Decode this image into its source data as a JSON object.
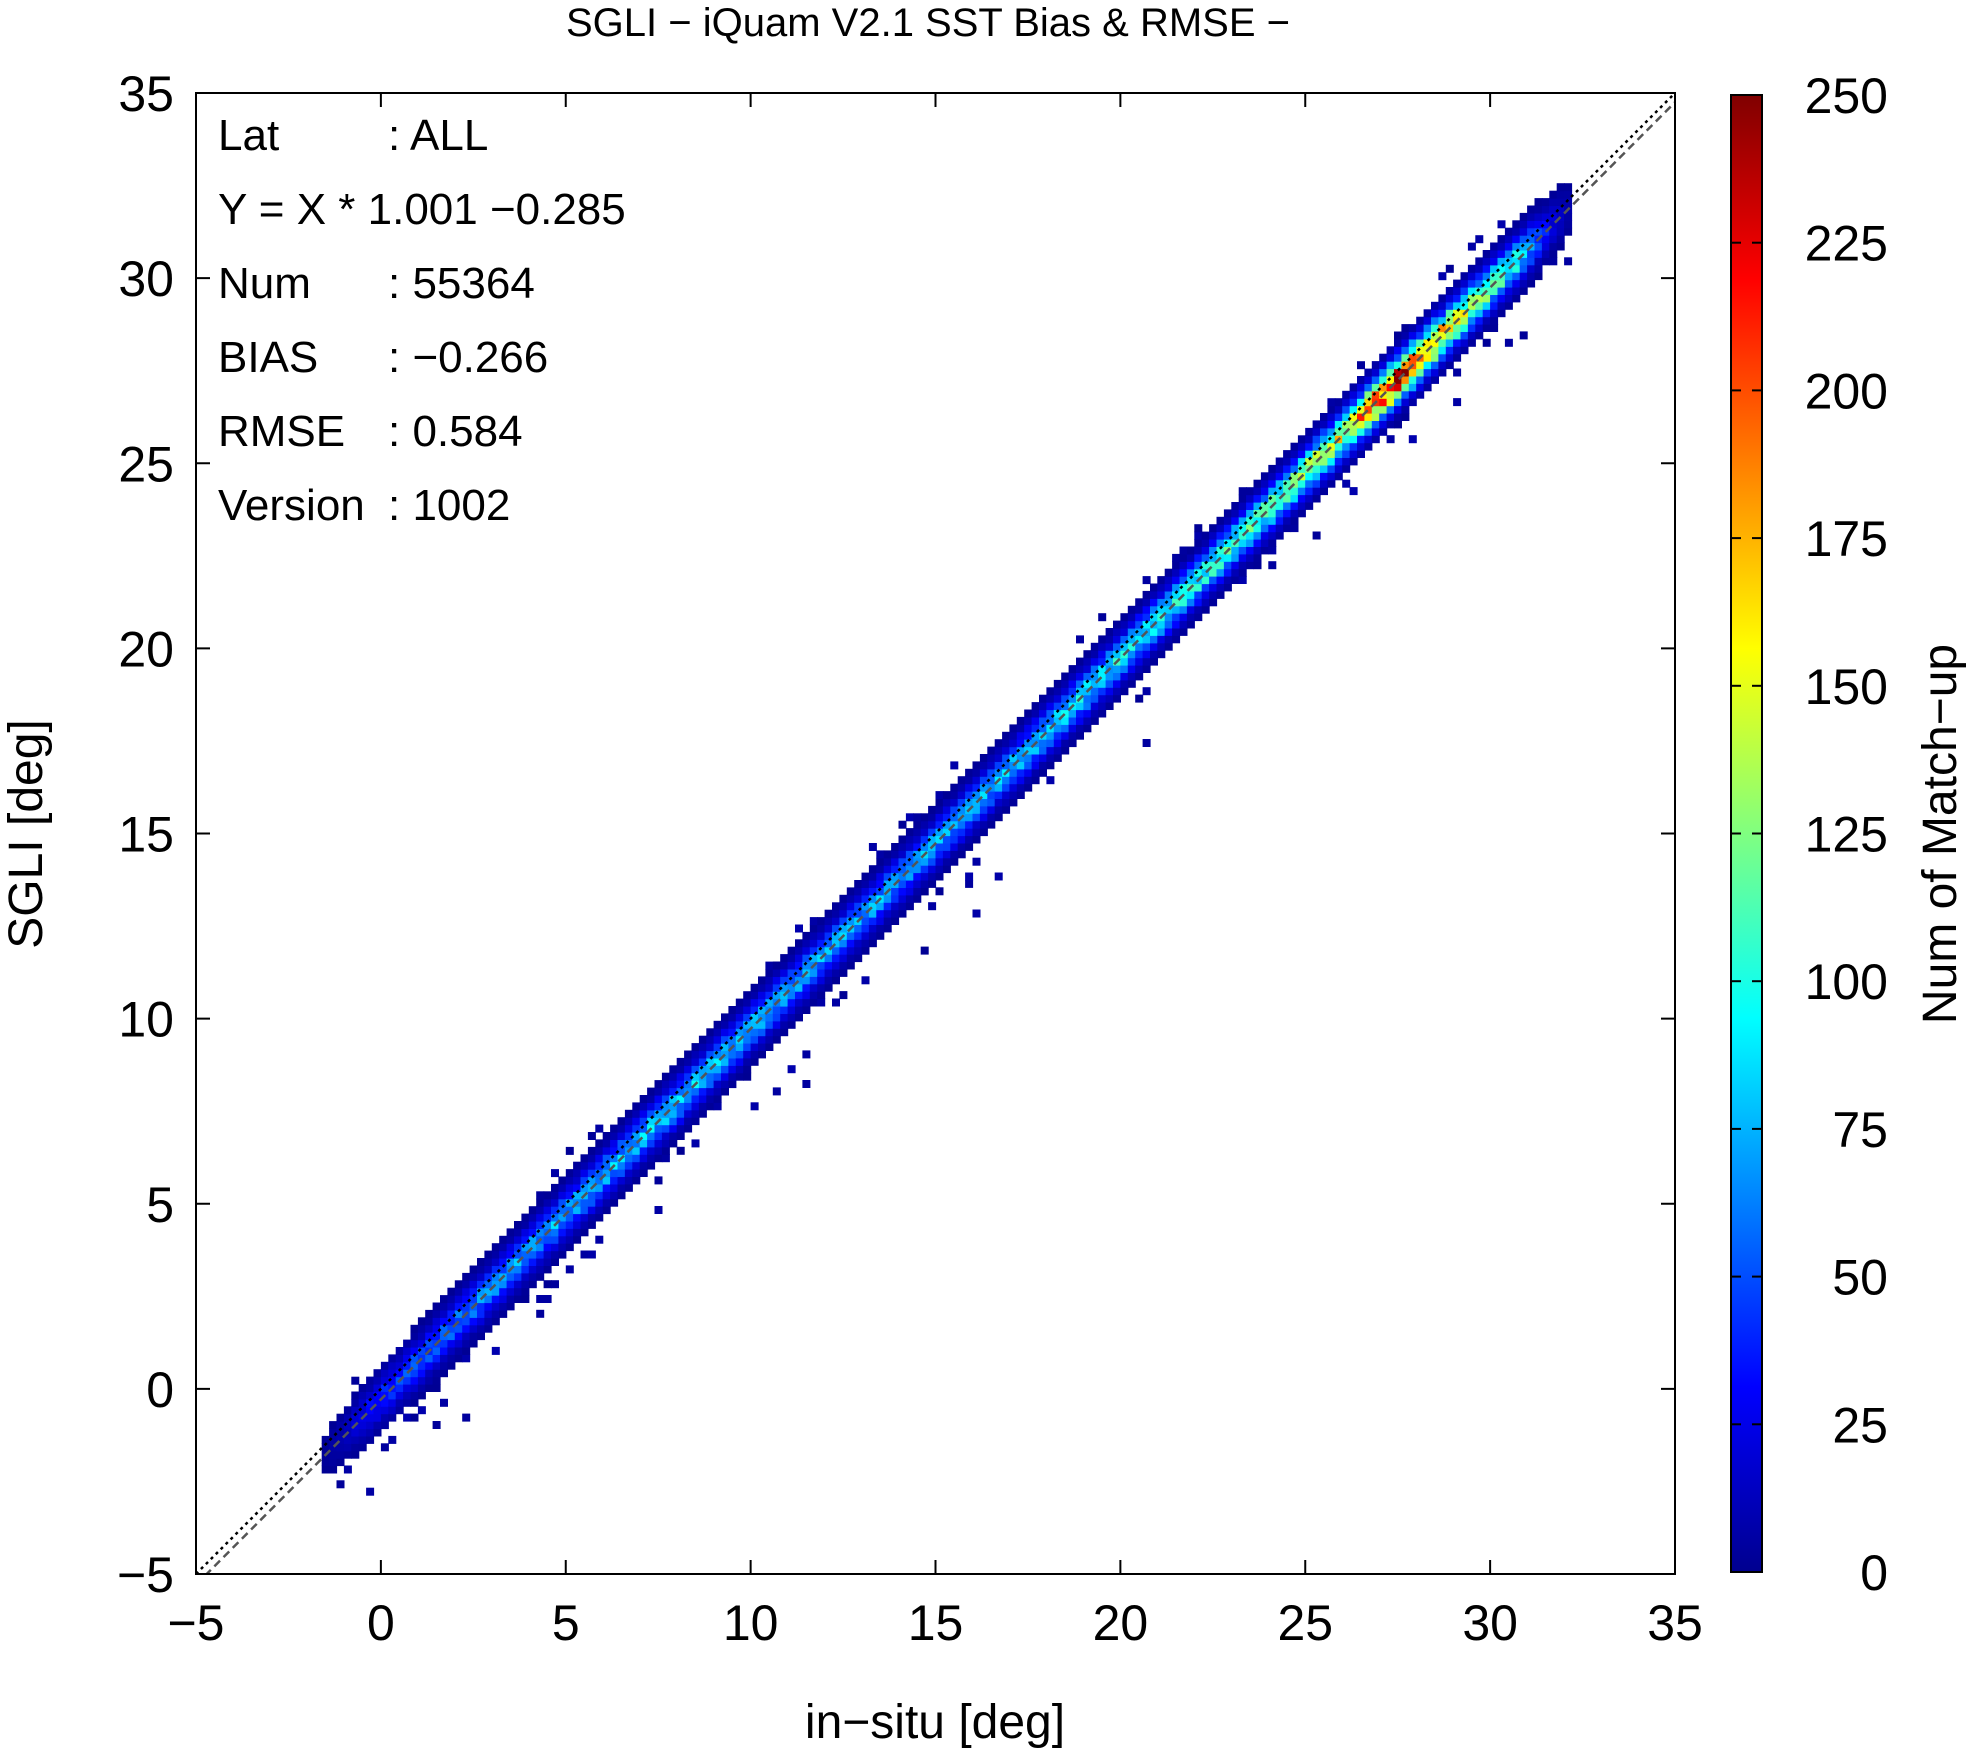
{
  "chart_data": {
    "type": "heatmap",
    "title": "SGLI − iQuam V2.1 SST Bias & RMSE  −",
    "xlabel": "in−situ [deg]",
    "ylabel": "SGLI [deg]",
    "xlim": [
      -5,
      35
    ],
    "ylim": [
      -5,
      35
    ],
    "x_ticks": [
      -5,
      0,
      5,
      10,
      15,
      20,
      25,
      30,
      35
    ],
    "y_ticks": [
      -5,
      0,
      5,
      10,
      15,
      20,
      25,
      30,
      35
    ],
    "x_tick_labels": [
      "−5",
      "0",
      "5",
      "10",
      "15",
      "20",
      "25",
      "30",
      "35"
    ],
    "y_tick_labels": [
      "−5",
      "0",
      "5",
      "10",
      "15",
      "20",
      "25",
      "30",
      "35"
    ],
    "colorbar": {
      "label": "Num of Match−up",
      "min": 0,
      "max": 250,
      "ticks": [
        0,
        25,
        50,
        75,
        100,
        125,
        150,
        175,
        200,
        225,
        250
      ],
      "tick_labels": [
        "0",
        "25",
        "50",
        "75",
        "100",
        "125",
        "150",
        "175",
        "200",
        "225",
        "250"
      ],
      "colormap": [
        "#00008f",
        "#0000ff",
        "#0080ff",
        "#00ffff",
        "#80ff80",
        "#ffff00",
        "#ff8000",
        "#ff0000",
        "#800000"
      ]
    },
    "lines": [
      {
        "kind": "one-to-one",
        "slope": 1.0,
        "intercept": 0.0,
        "style": "dotted",
        "color": "#000000"
      },
      {
        "kind": "regression",
        "slope": 1.001,
        "intercept": -0.285,
        "style": "dashed",
        "color": "#555555"
      }
    ],
    "density_profile": [
      {
        "x": -1,
        "count": 20
      },
      {
        "x": 0,
        "count": 40
      },
      {
        "x": 2,
        "count": 60
      },
      {
        "x": 4,
        "count": 70
      },
      {
        "x": 6,
        "count": 75
      },
      {
        "x": 8,
        "count": 80
      },
      {
        "x": 10,
        "count": 75
      },
      {
        "x": 12,
        "count": 70
      },
      {
        "x": 14,
        "count": 70
      },
      {
        "x": 16,
        "count": 70
      },
      {
        "x": 18,
        "count": 80
      },
      {
        "x": 20,
        "count": 90
      },
      {
        "x": 22,
        "count": 100
      },
      {
        "x": 24,
        "count": 110
      },
      {
        "x": 26,
        "count": 150
      },
      {
        "x": 27.5,
        "count": 230
      },
      {
        "x": 29,
        "count": 150
      },
      {
        "x": 30.5,
        "count": 100
      },
      {
        "x": 31.5,
        "count": 40
      }
    ],
    "stats": [
      {
        "label": "Lat",
        "value": ": ALL"
      },
      {
        "label": "Y = X * 1.001 −0.285",
        "value": ""
      },
      {
        "label": "Num",
        "value": ": 55364"
      },
      {
        "label": "BIAS",
        "value": ": −0.266"
      },
      {
        "label": "RMSE",
        "value": ": 0.584"
      },
      {
        "label": "Version",
        "value": ": 1002"
      }
    ]
  }
}
